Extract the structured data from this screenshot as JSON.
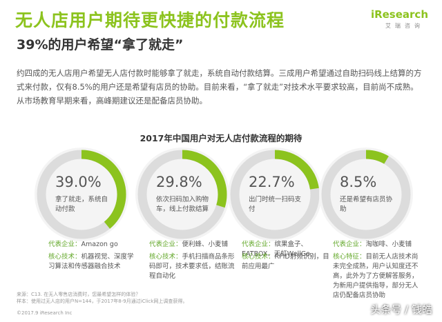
{
  "title": "无人店用户期待更快捷的付款流程",
  "subtitle": "39%的用户希望“拿了就走”",
  "logo": "iResearch",
  "logo_sub": "艾瑞咨询",
  "body": "约四成的无人店用户希望无人店付款时能够拿了就走，系统自动付款结算。三成用户希望通过自助扫码线上结算的方式来付款，仅有8.5%的用户还是希望有店员的协助。目前来看，“拿了就走”对技术水平要求较高，目前尚不成熟。从市场教育早期来看，高峰期建议还是配备店员协助。",
  "chart_title": "2017年中国用户对无人店付款流程的期待",
  "chart_data": [
    {
      "type": "donut",
      "values": [
        39.0
      ],
      "value_labels": [
        "39.0%"
      ],
      "label": "拿了就走，系统自动付款",
      "color": "#8cc31e",
      "track_color": "#dcdcdc",
      "company_label": "代表企业：",
      "companies": "Amazon go",
      "tech_label": "核心技术：",
      "tech": "机器视觉、深度学习算法和传感器融合技术"
    },
    {
      "type": "donut",
      "values": [
        29.8
      ],
      "value_labels": [
        "29.8%"
      ],
      "label": "依次扫码加入购物车，线上付款结算",
      "color": "#8cc31e",
      "track_color": "#dcdcdc",
      "company_label": "代表企业：",
      "companies": "便利蜂、小麦铺",
      "tech_label": "核心技术：",
      "tech": "手机扫描商品条形码即可，技术要求低，结账流程自动化"
    },
    {
      "type": "donut",
      "values": [
        22.7
      ],
      "value_labels": [
        "22.7%"
      ],
      "label": "出门时统一扫码支付",
      "color": "#8cc31e",
      "track_color": "#dcdcdc",
      "company_label": "代表企业：",
      "companies": "缤果盒子、EATBOX、天虹WellGo",
      "tech_label": "核心技术：",
      "tech": "RFID射频识别，目前应用最广"
    },
    {
      "type": "donut",
      "values": [
        8.5
      ],
      "value_labels": [
        "8.5%"
      ],
      "label": "还是希望有店员协助",
      "color": "#8cc31e",
      "track_color": "#dcdcdc",
      "company_label": "代表企业：",
      "companies": "淘咖啡、小麦铺",
      "tech_label": "核心特征：",
      "tech": "目前无人店技术尚未完全成熟，用户认知度还不高，此外为了方便解答服务，为新用户提供指导，部分无人店仍配备店员协助"
    }
  ],
  "note_source": "来源：C13. 在无人零售店消费时，您最希望怎样的体验？",
  "note_sample": "样本：使用过无人店的用户N=144，于2017年8-9月通过iClick网上调查获得。",
  "copyright": "©2017.9 iResearch Inc",
  "watermark": "头条号 / 钱皓"
}
